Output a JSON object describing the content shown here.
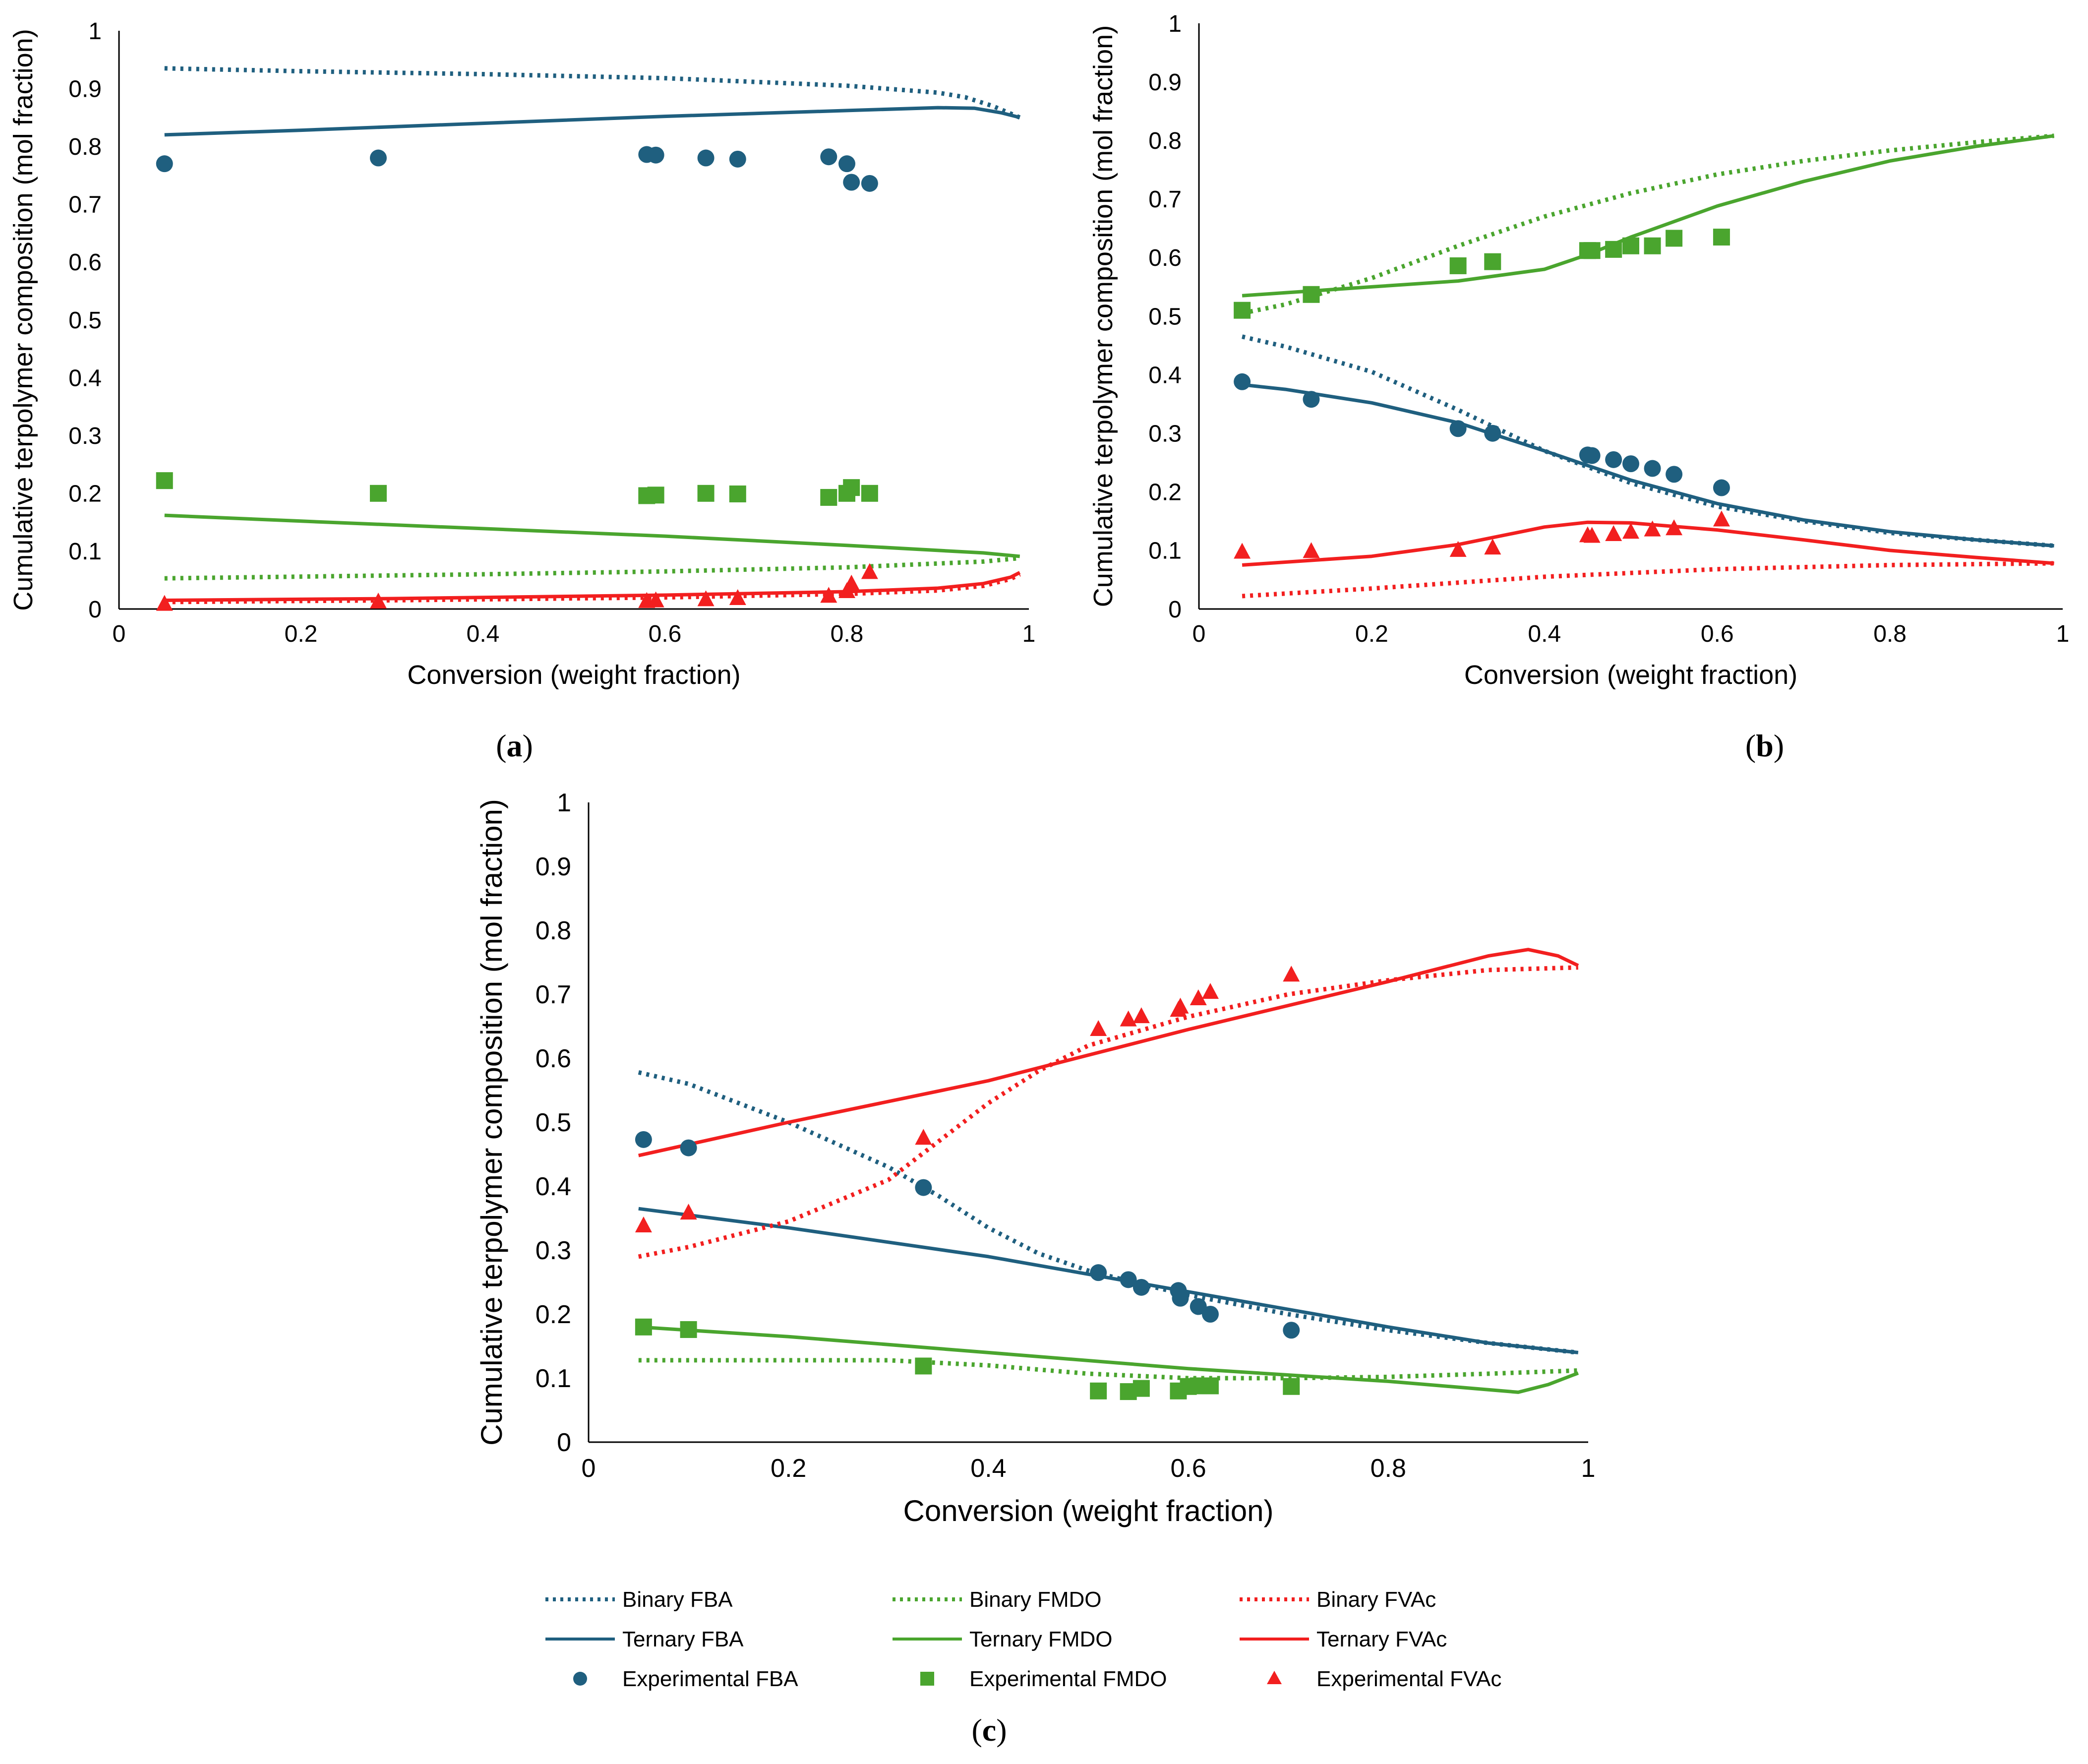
{
  "colors": {
    "FBA": "#1f5f7f",
    "FMDO": "#4aa52e",
    "FVAc": "#f21f1f",
    "axis": "#000000"
  },
  "chart_data": [
    {
      "id": "a",
      "panel_label": "a",
      "type": "scatter",
      "xlabel": "Conversion (weight fraction)",
      "ylabel": "Cumulative terpolymer composition (mol fraction)",
      "xlim": [
        0,
        1
      ],
      "ylim": [
        0,
        1
      ],
      "xticks": [
        "0",
        "0.2",
        "0.4",
        "0.6",
        "0.8",
        "1"
      ],
      "yticks": [
        "0",
        "0.1",
        "0.2",
        "0.3",
        "0.4",
        "0.5",
        "0.6",
        "0.7",
        "0.8",
        "0.9",
        "1"
      ],
      "series": [
        {
          "name": "Binary FBA",
          "color": "FBA",
          "style": "dotted",
          "x": [
            0.05,
            0.2,
            0.4,
            0.6,
            0.8,
            0.9,
            0.93,
            0.96,
            0.99
          ],
          "y": [
            0.935,
            0.93,
            0.925,
            0.918,
            0.905,
            0.893,
            0.885,
            0.87,
            0.85
          ]
        },
        {
          "name": "Ternary FBA",
          "color": "FBA",
          "style": "solid",
          "x": [
            0.05,
            0.2,
            0.4,
            0.6,
            0.8,
            0.9,
            0.94,
            0.97,
            0.99
          ],
          "y": [
            0.82,
            0.828,
            0.84,
            0.852,
            0.862,
            0.867,
            0.866,
            0.858,
            0.85
          ]
        },
        {
          "name": "Binary FMDO",
          "color": "FMDO",
          "style": "dotted",
          "x": [
            0.05,
            0.2,
            0.4,
            0.6,
            0.8,
            0.95,
            0.99
          ],
          "y": [
            0.053,
            0.056,
            0.06,
            0.065,
            0.072,
            0.082,
            0.088
          ]
        },
        {
          "name": "Ternary FMDO",
          "color": "FMDO",
          "style": "solid",
          "x": [
            0.05,
            0.2,
            0.4,
            0.6,
            0.8,
            0.95,
            0.99
          ],
          "y": [
            0.162,
            0.152,
            0.139,
            0.126,
            0.11,
            0.097,
            0.091
          ]
        },
        {
          "name": "Binary FVAc",
          "color": "FVAc",
          "style": "dotted",
          "x": [
            0.05,
            0.3,
            0.6,
            0.8,
            0.9,
            0.95,
            0.98,
            0.99
          ],
          "y": [
            0.012,
            0.015,
            0.02,
            0.026,
            0.032,
            0.04,
            0.052,
            0.06
          ]
        },
        {
          "name": "Ternary FVAc",
          "color": "FVAc",
          "style": "solid",
          "x": [
            0.05,
            0.3,
            0.6,
            0.8,
            0.9,
            0.95,
            0.98,
            0.99
          ],
          "y": [
            0.015,
            0.018,
            0.024,
            0.03,
            0.036,
            0.044,
            0.055,
            0.063
          ]
        },
        {
          "name": "Experimental FBA",
          "color": "FBA",
          "marker": "circle",
          "x": [
            0.05,
            0.285,
            0.58,
            0.59,
            0.645,
            0.68,
            0.78,
            0.8,
            0.805,
            0.825
          ],
          "y": [
            0.77,
            0.78,
            0.786,
            0.785,
            0.78,
            0.778,
            0.782,
            0.77,
            0.738,
            0.736
          ]
        },
        {
          "name": "Experimental FMDO",
          "color": "FMDO",
          "marker": "square",
          "x": [
            0.05,
            0.285,
            0.58,
            0.59,
            0.645,
            0.68,
            0.78,
            0.8,
            0.805,
            0.825
          ],
          "y": [
            0.222,
            0.2,
            0.196,
            0.197,
            0.2,
            0.199,
            0.193,
            0.2,
            0.21,
            0.2
          ]
        },
        {
          "name": "Experimental FVAc",
          "color": "FVAc",
          "marker": "triangle",
          "x": [
            0.05,
            0.285,
            0.58,
            0.59,
            0.645,
            0.68,
            0.78,
            0.8,
            0.805,
            0.825
          ],
          "y": [
            0.008,
            0.012,
            0.013,
            0.014,
            0.016,
            0.018,
            0.022,
            0.03,
            0.043,
            0.063
          ]
        }
      ]
    },
    {
      "id": "b",
      "panel_label": "b",
      "type": "scatter",
      "xlabel": "Conversion (weight fraction)",
      "ylabel": "Cumulative terpolymer composition (mol fraction)",
      "xlim": [
        0,
        1
      ],
      "ylim": [
        0,
        1
      ],
      "xticks": [
        "0",
        "0.2",
        "0.4",
        "0.6",
        "0.8",
        "1"
      ],
      "yticks": [
        "0",
        "0.1",
        "0.2",
        "0.3",
        "0.4",
        "0.5",
        "0.6",
        "0.7",
        "0.8",
        "0.9",
        "1"
      ],
      "series": [
        {
          "name": "Binary FBA",
          "color": "FBA",
          "style": "dotted",
          "x": [
            0.05,
            0.1,
            0.2,
            0.3,
            0.4,
            0.5,
            0.6,
            0.7,
            0.8,
            0.9,
            0.99
          ],
          "y": [
            0.465,
            0.448,
            0.405,
            0.34,
            0.27,
            0.215,
            0.175,
            0.15,
            0.13,
            0.118,
            0.108
          ]
        },
        {
          "name": "Ternary FBA",
          "color": "FBA",
          "style": "solid",
          "x": [
            0.05,
            0.1,
            0.2,
            0.3,
            0.4,
            0.5,
            0.6,
            0.7,
            0.8,
            0.9,
            0.99
          ],
          "y": [
            0.383,
            0.375,
            0.352,
            0.318,
            0.27,
            0.22,
            0.18,
            0.152,
            0.132,
            0.118,
            0.108
          ]
        },
        {
          "name": "Binary FMDO",
          "color": "FMDO",
          "style": "dotted",
          "x": [
            0.05,
            0.1,
            0.2,
            0.3,
            0.4,
            0.5,
            0.6,
            0.7,
            0.8,
            0.9,
            0.99
          ],
          "y": [
            0.505,
            0.52,
            0.565,
            0.62,
            0.67,
            0.71,
            0.742,
            0.765,
            0.783,
            0.797,
            0.808
          ]
        },
        {
          "name": "Ternary FMDO",
          "color": "FMDO",
          "style": "solid",
          "x": [
            0.05,
            0.1,
            0.2,
            0.3,
            0.4,
            0.45,
            0.5,
            0.6,
            0.7,
            0.8,
            0.9,
            0.99
          ],
          "y": [
            0.535,
            0.54,
            0.55,
            0.56,
            0.58,
            0.605,
            0.635,
            0.688,
            0.73,
            0.765,
            0.79,
            0.808
          ]
        },
        {
          "name": "Binary FVAc",
          "color": "FVAc",
          "style": "dotted",
          "x": [
            0.05,
            0.2,
            0.4,
            0.6,
            0.8,
            0.99
          ],
          "y": [
            0.022,
            0.035,
            0.055,
            0.068,
            0.075,
            0.078
          ]
        },
        {
          "name": "Ternary FVAc",
          "color": "FVAc",
          "style": "solid",
          "x": [
            0.05,
            0.2,
            0.3,
            0.4,
            0.45,
            0.5,
            0.6,
            0.7,
            0.8,
            0.9,
            0.99
          ],
          "y": [
            0.075,
            0.09,
            0.11,
            0.14,
            0.148,
            0.147,
            0.135,
            0.118,
            0.1,
            0.088,
            0.078
          ]
        },
        {
          "name": "Experimental FBA",
          "color": "FBA",
          "marker": "circle",
          "x": [
            0.05,
            0.13,
            0.3,
            0.34,
            0.45,
            0.455,
            0.48,
            0.5,
            0.525,
            0.55,
            0.605
          ],
          "y": [
            0.388,
            0.358,
            0.308,
            0.3,
            0.263,
            0.262,
            0.255,
            0.248,
            0.24,
            0.23,
            0.207
          ]
        },
        {
          "name": "Experimental FMDO",
          "color": "FMDO",
          "marker": "square",
          "x": [
            0.05,
            0.13,
            0.3,
            0.34,
            0.45,
            0.455,
            0.48,
            0.5,
            0.525,
            0.55,
            0.605
          ],
          "y": [
            0.51,
            0.537,
            0.586,
            0.593,
            0.612,
            0.612,
            0.614,
            0.62,
            0.62,
            0.633,
            0.635
          ]
        },
        {
          "name": "Experimental FVAc",
          "color": "FVAc",
          "marker": "triangle",
          "x": [
            0.05,
            0.13,
            0.3,
            0.34,
            0.45,
            0.455,
            0.48,
            0.5,
            0.525,
            0.55,
            0.605
          ],
          "y": [
            0.097,
            0.098,
            0.1,
            0.104,
            0.125,
            0.124,
            0.127,
            0.131,
            0.135,
            0.137,
            0.152
          ]
        }
      ]
    },
    {
      "id": "c",
      "panel_label": "c",
      "type": "scatter",
      "xlabel": "Conversion (weight fraction)",
      "ylabel": "Cumulative terpolymer composition (mol fraction)",
      "xlim": [
        0,
        1
      ],
      "ylim": [
        0,
        1
      ],
      "xticks": [
        "0",
        "0.2",
        "0.4",
        "0.6",
        "0.8",
        "1"
      ],
      "yticks": [
        "0",
        "0.1",
        "0.2",
        "0.3",
        "0.4",
        "0.5",
        "0.6",
        "0.7",
        "0.8",
        "0.9",
        "1"
      ],
      "series": [
        {
          "name": "Binary FBA",
          "color": "FBA",
          "style": "dotted",
          "x": [
            0.05,
            0.1,
            0.2,
            0.3,
            0.35,
            0.4,
            0.45,
            0.5,
            0.55,
            0.6,
            0.7,
            0.8,
            0.9,
            0.99
          ],
          "y": [
            0.578,
            0.56,
            0.5,
            0.43,
            0.385,
            0.335,
            0.295,
            0.268,
            0.248,
            0.23,
            0.2,
            0.175,
            0.155,
            0.14
          ]
        },
        {
          "name": "Ternary FBA",
          "color": "FBA",
          "style": "solid",
          "x": [
            0.05,
            0.2,
            0.4,
            0.6,
            0.8,
            0.9,
            0.99
          ],
          "y": [
            0.365,
            0.335,
            0.29,
            0.235,
            0.18,
            0.155,
            0.14
          ]
        },
        {
          "name": "Binary FMDO",
          "color": "FMDO",
          "style": "dotted",
          "x": [
            0.05,
            0.2,
            0.3,
            0.4,
            0.5,
            0.6,
            0.7,
            0.8,
            0.9,
            0.99
          ],
          "y": [
            0.128,
            0.128,
            0.128,
            0.12,
            0.107,
            0.1,
            0.1,
            0.102,
            0.107,
            0.112
          ]
        },
        {
          "name": "Ternary FMDO",
          "color": "FMDO",
          "style": "solid",
          "x": [
            0.05,
            0.2,
            0.4,
            0.6,
            0.8,
            0.9,
            0.93,
            0.96,
            0.99
          ],
          "y": [
            0.18,
            0.165,
            0.14,
            0.115,
            0.095,
            0.082,
            0.078,
            0.09,
            0.108
          ]
        },
        {
          "name": "Binary FVAc",
          "color": "FVAc",
          "style": "dotted",
          "x": [
            0.05,
            0.1,
            0.2,
            0.3,
            0.35,
            0.4,
            0.45,
            0.5,
            0.6,
            0.7,
            0.8,
            0.9,
            0.99
          ],
          "y": [
            0.29,
            0.305,
            0.345,
            0.41,
            0.47,
            0.53,
            0.58,
            0.62,
            0.665,
            0.7,
            0.722,
            0.738,
            0.742
          ]
        },
        {
          "name": "Ternary FVAc",
          "color": "FVAc",
          "style": "solid",
          "x": [
            0.05,
            0.2,
            0.4,
            0.6,
            0.8,
            0.9,
            0.94,
            0.97,
            0.99
          ],
          "y": [
            0.448,
            0.5,
            0.565,
            0.645,
            0.72,
            0.76,
            0.77,
            0.76,
            0.745
          ]
        },
        {
          "name": "Experimental FBA",
          "color": "FBA",
          "marker": "circle",
          "x": [
            0.055,
            0.1,
            0.335,
            0.51,
            0.54,
            0.553,
            0.59,
            0.592,
            0.61,
            0.622,
            0.703
          ],
          "y": [
            0.473,
            0.46,
            0.398,
            0.265,
            0.254,
            0.242,
            0.237,
            0.225,
            0.212,
            0.2,
            0.175
          ]
        },
        {
          "name": "Experimental FMDO",
          "color": "FMDO",
          "marker": "square",
          "x": [
            0.055,
            0.1,
            0.335,
            0.51,
            0.54,
            0.553,
            0.59,
            0.6,
            0.61,
            0.622,
            0.703
          ],
          "y": [
            0.18,
            0.176,
            0.119,
            0.08,
            0.079,
            0.084,
            0.08,
            0.087,
            0.088,
            0.088,
            0.087
          ]
        },
        {
          "name": "Experimental FVAc",
          "color": "FVAc",
          "marker": "triangle",
          "x": [
            0.055,
            0.1,
            0.335,
            0.51,
            0.54,
            0.553,
            0.59,
            0.592,
            0.61,
            0.622,
            0.703
          ],
          "y": [
            0.338,
            0.358,
            0.475,
            0.645,
            0.66,
            0.665,
            0.675,
            0.68,
            0.693,
            0.703,
            0.73
          ]
        }
      ]
    }
  ],
  "legend": {
    "items": [
      {
        "label": "Binary FBA",
        "color": "FBA",
        "kind": "dotted"
      },
      {
        "label": "Binary FMDO",
        "color": "FMDO",
        "kind": "dotted"
      },
      {
        "label": "Binary FVAc",
        "color": "FVAc",
        "kind": "dotted"
      },
      {
        "label": "Ternary FBA",
        "color": "FBA",
        "kind": "solid"
      },
      {
        "label": "Ternary FMDO",
        "color": "FMDO",
        "kind": "solid"
      },
      {
        "label": "Ternary FVAc",
        "color": "FVAc",
        "kind": "solid"
      },
      {
        "label": "Experimental FBA",
        "color": "FBA",
        "kind": "circle"
      },
      {
        "label": "Experimental FMDO",
        "color": "FMDO",
        "kind": "square"
      },
      {
        "label": "Experimental FVAc",
        "color": "FVAc",
        "kind": "triangle"
      }
    ]
  }
}
